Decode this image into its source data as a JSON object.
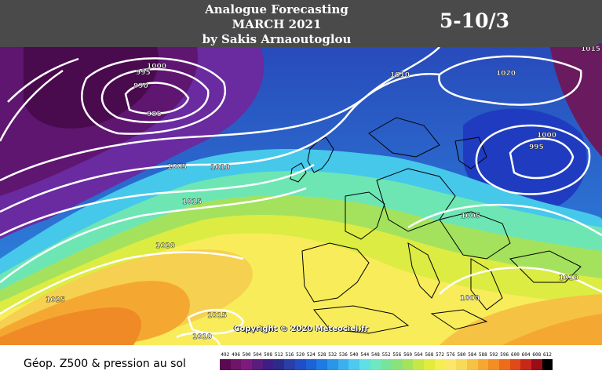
{
  "header": {
    "title_line1": "Analogue Forecasting",
    "title_line2": "MARCH 2021",
    "title_line3": "by Sakis Arnaoutoglou",
    "date_range": "5-10/3"
  },
  "map": {
    "isobar_labels": [
      "995",
      "1000",
      "990",
      "985",
      "1010",
      "1020",
      "1015",
      "995",
      "1000",
      "1005",
      "1010",
      "1015",
      "1020",
      "1025",
      "1005",
      "1010",
      "1000",
      "1015",
      "1010"
    ],
    "copyright": "Copyright © 2020 Meteociel.fr"
  },
  "footer": {
    "label": "Géop. Z500 & pression au sol"
  },
  "legend": {
    "ticks": [
      "492",
      "496",
      "500",
      "504",
      "508",
      "512",
      "516",
      "520",
      "524",
      "528",
      "532",
      "536",
      "540",
      "544",
      "548",
      "552",
      "556",
      "560",
      "564",
      "568",
      "572",
      "576",
      "580",
      "584",
      "588",
      "592",
      "596",
      "600",
      "604",
      "608",
      "612"
    ],
    "colors": [
      "#5a0a52",
      "#6e1469",
      "#7e1a7c",
      "#5b1c7d",
      "#3c1e86",
      "#2d2b8a",
      "#2a3ea8",
      "#1f4ec8",
      "#1e62d8",
      "#1f7ae2",
      "#2a96e8",
      "#3cb0ee",
      "#4ccaf0",
      "#5ee0e4",
      "#6ee8c0",
      "#76e49c",
      "#8ae27a",
      "#a6e25a",
      "#c6e844",
      "#e2ec3c",
      "#f4ee50",
      "#fbe86a",
      "#f8da5a",
      "#f6c244",
      "#f4a832",
      "#f28e24",
      "#ec6c1c",
      "#e04a16",
      "#c8281a",
      "#9c0c16",
      "#000000"
    ]
  }
}
